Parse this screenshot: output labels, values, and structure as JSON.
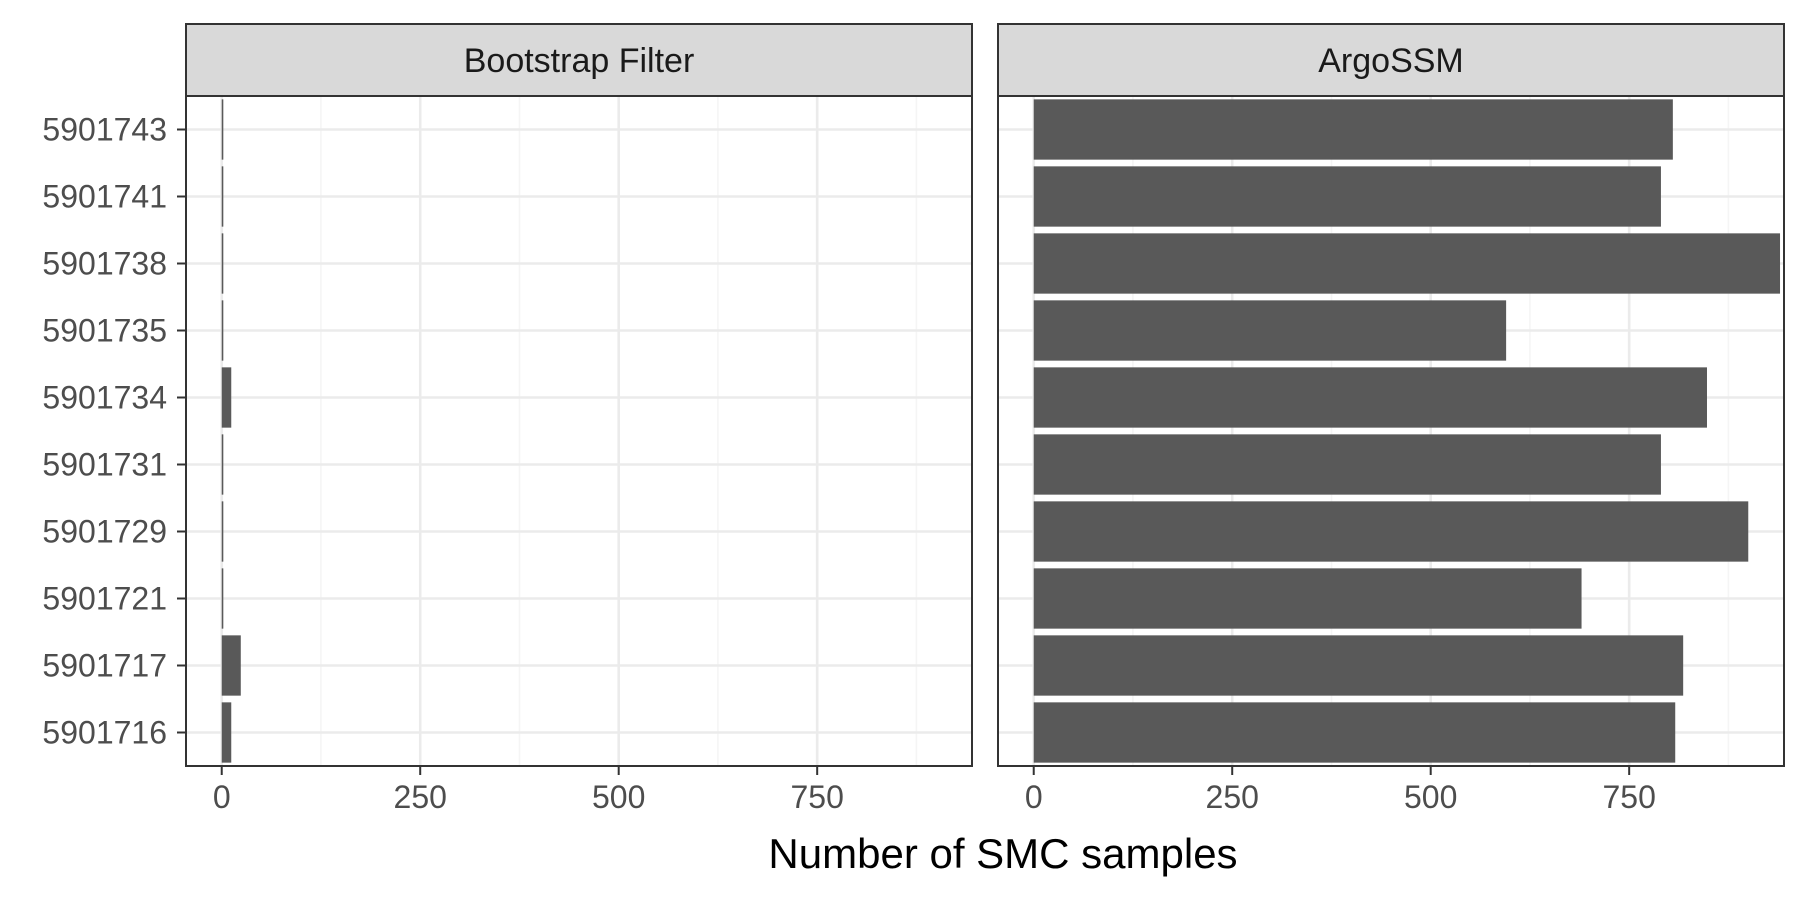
{
  "chart_data": {
    "type": "bar",
    "orientation": "horizontal",
    "xlabel": "Number of SMC samples",
    "ylabel": "",
    "xlim": [
      -45,
      945
    ],
    "x_ticks": [
      0,
      250,
      500,
      750
    ],
    "grid": true,
    "categories": [
      "5901743",
      "5901741",
      "5901738",
      "5901735",
      "5901734",
      "5901731",
      "5901729",
      "5901721",
      "5901717",
      "5901716"
    ],
    "panels": [
      {
        "name": "Bootstrap Filter",
        "values": [
          2,
          2,
          2,
          2,
          12,
          2,
          2,
          2,
          24,
          12
        ]
      },
      {
        "name": "ArgoSSM",
        "values": [
          805,
          790,
          940,
          595,
          848,
          790,
          900,
          690,
          818,
          808
        ]
      }
    ],
    "colors": {
      "bar": "#595959",
      "strip_bg": "#d9d9d9",
      "grid_major": "#ebebeb",
      "grid_minor": "#f5f5f5",
      "panel_border": "#333333",
      "tick_text": "#4d4d4d"
    }
  }
}
